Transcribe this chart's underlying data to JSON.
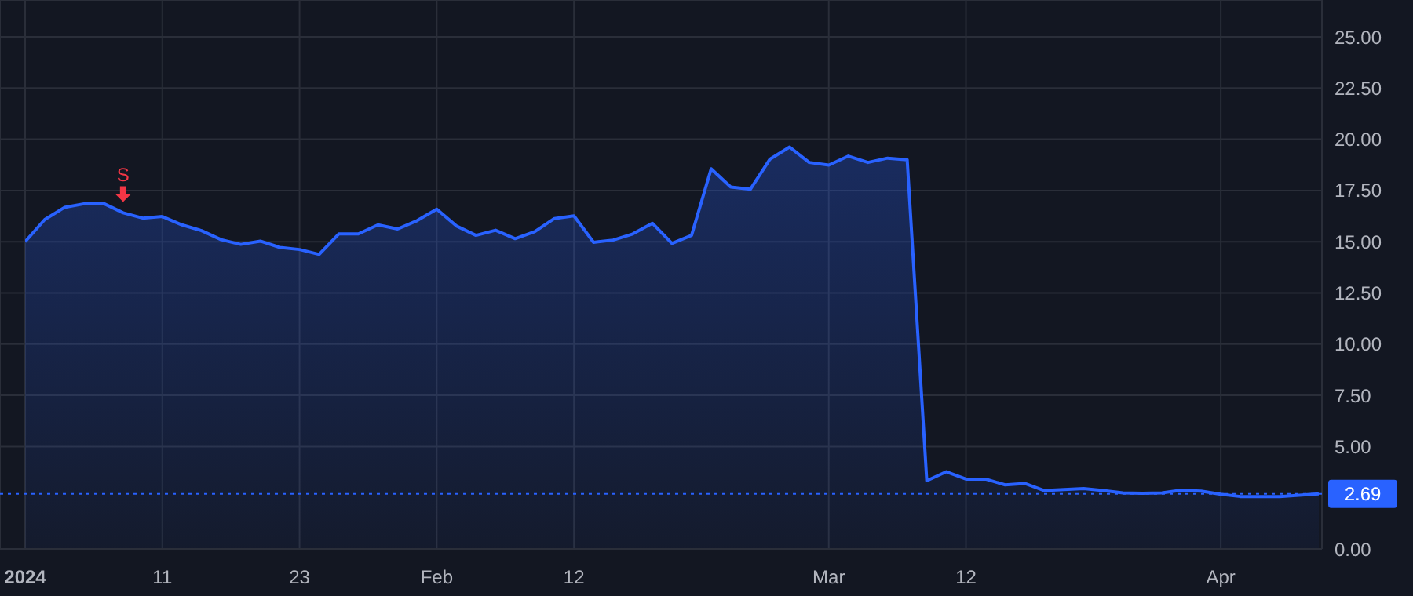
{
  "chart_data": {
    "type": "area",
    "categories": [
      "2024",
      null,
      null,
      null,
      null,
      null,
      null,
      "11",
      null,
      null,
      null,
      null,
      null,
      null,
      "23",
      null,
      null,
      null,
      null,
      null,
      null,
      "Feb",
      null,
      null,
      null,
      null,
      null,
      null,
      "12",
      null,
      null,
      null,
      null,
      null,
      null,
      null,
      null,
      null,
      null,
      null,
      null,
      "Mar",
      null,
      null,
      null,
      null,
      null,
      null,
      "12",
      null,
      null,
      null,
      null,
      null,
      null,
      null,
      null,
      null,
      null,
      null,
      null,
      "Apr",
      null,
      null,
      null,
      null,
      null
    ],
    "series": [
      {
        "color": "#2962ff",
        "values": [
          15.0,
          16.08,
          16.67,
          16.85,
          16.87,
          16.41,
          16.15,
          16.23,
          15.82,
          15.54,
          15.1,
          14.87,
          15.03,
          14.72,
          14.62,
          14.38,
          15.38,
          15.38,
          15.82,
          15.62,
          16.03,
          16.59,
          15.77,
          15.31,
          15.56,
          15.15,
          15.49,
          16.13,
          16.26,
          14.97,
          15.08,
          15.38,
          15.9,
          14.92,
          15.31,
          18.56,
          17.67,
          17.56,
          19.03,
          19.62,
          18.87,
          18.74,
          19.18,
          18.87,
          19.08,
          19.0,
          3.33,
          3.77,
          3.41,
          3.41,
          3.13,
          3.2,
          2.85,
          2.9,
          2.95,
          2.85,
          2.74,
          2.72,
          2.74,
          2.87,
          2.82,
          2.67,
          2.56,
          2.56,
          2.56,
          2.62,
          2.69
        ]
      }
    ],
    "ylim": [
      0,
      26.8
    ],
    "yticks": [
      {
        "value": 0,
        "label": "0.00"
      },
      {
        "value": 5,
        "label": "5.00"
      },
      {
        "value": 7.5,
        "label": "7.50"
      },
      {
        "value": 10,
        "label": "10.00"
      },
      {
        "value": 12.5,
        "label": "12.50"
      },
      {
        "value": 15,
        "label": "15.00"
      },
      {
        "value": 17.5,
        "label": "17.50"
      },
      {
        "value": 20,
        "label": "20.00"
      },
      {
        "value": 22.5,
        "label": "22.50"
      },
      {
        "value": 25,
        "label": "25.00"
      }
    ],
    "grid": true,
    "legend": false,
    "marker": "none",
    "ref_lines": [
      {
        "axis": "y",
        "value": 2.69,
        "label": "2.69",
        "color": "#2962ff",
        "line_style": "dotted"
      }
    ],
    "annotations": [
      {
        "text": "S",
        "y": 16.41
      }
    ]
  }
}
